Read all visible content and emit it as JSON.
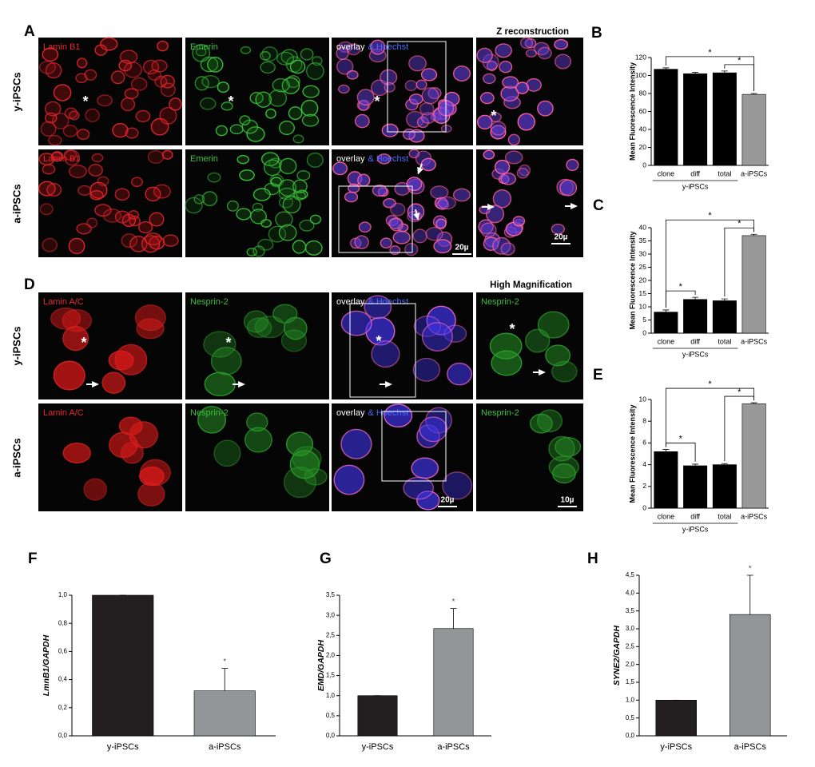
{
  "panel_A": {
    "letter": "A",
    "heading": "Z reconstruction",
    "row_labels": [
      "y-iPSCs",
      "a-iPSCs"
    ],
    "channel_labels": [
      "Lamin B1",
      "Emerin"
    ],
    "overlay_label": [
      "overlay",
      "& Hoechst"
    ],
    "scale_bars": [
      "20µ",
      "20µ"
    ],
    "cell_marker": "*"
  },
  "panel_D": {
    "letter": "D",
    "heading": "High Magnification",
    "row_labels": [
      "y-iPSCs",
      "a-iPSCs"
    ],
    "channel_labels": [
      "Lamin A/C",
      "Nesprin-2"
    ],
    "overlay_label": [
      "overlay",
      "& Hoechst"
    ],
    "scale_bars": [
      "20µ",
      "10µ"
    ],
    "cell_marker": "*"
  },
  "chart_data": [
    {
      "type": "bar",
      "panel": "B",
      "ylabel": "Mean Fluorescence Intensity",
      "categories": [
        "clone",
        "diff",
        "total",
        "a-iPSCs"
      ],
      "values": [
        107,
        102,
        103,
        79
      ],
      "errors": [
        1.5,
        1.5,
        2,
        1
      ],
      "colors": [
        "#000000",
        "#000000",
        "#000000",
        "#999999"
      ],
      "ylim": [
        0,
        120
      ],
      "yticks": [
        0,
        20,
        40,
        60,
        80,
        100,
        120
      ],
      "group": {
        "label": "y-iPSCs",
        "span": [
          0,
          2
        ]
      },
      "significance": [
        {
          "pair": [
            2,
            3
          ],
          "label": "*"
        },
        {
          "pair": [
            0,
            3
          ],
          "label": "*"
        }
      ]
    },
    {
      "type": "bar",
      "panel": "C",
      "ylabel": "Mean Fluorescence Intensity",
      "categories": [
        "clone",
        "diff",
        "total",
        "a-iPSCs"
      ],
      "values": [
        8,
        12.8,
        12.3,
        37
      ],
      "errors": [
        0.8,
        0.8,
        0.7,
        0.5
      ],
      "colors": [
        "#000000",
        "#000000",
        "#000000",
        "#999999"
      ],
      "ylim": [
        0,
        40
      ],
      "yticks": [
        0,
        5,
        10,
        15,
        20,
        25,
        30,
        35,
        40
      ],
      "group": {
        "label": "y-iPSCs",
        "span": [
          0,
          2
        ]
      },
      "significance": [
        {
          "pair": [
            0,
            1
          ],
          "label": "*"
        },
        {
          "pair": [
            2,
            3
          ],
          "label": "*"
        },
        {
          "pair": [
            0,
            3
          ],
          "label": "*"
        }
      ]
    },
    {
      "type": "bar",
      "panel": "E",
      "ylabel": "Mean Fluorescence Intensity",
      "categories": [
        "clone",
        "diff",
        "total",
        "a-iPSCs"
      ],
      "values": [
        5.2,
        3.9,
        4.0,
        9.6
      ],
      "errors": [
        0.2,
        0.15,
        0.1,
        0.1
      ],
      "colors": [
        "#000000",
        "#000000",
        "#000000",
        "#999999"
      ],
      "ylim": [
        0,
        10
      ],
      "yticks": [
        0,
        2,
        4,
        6,
        8,
        10
      ],
      "group": {
        "label": "y-iPSCs",
        "span": [
          0,
          2
        ]
      },
      "significance": [
        {
          "pair": [
            0,
            1
          ],
          "label": "*"
        },
        {
          "pair": [
            2,
            3
          ],
          "label": "*"
        },
        {
          "pair": [
            0,
            3
          ],
          "label": "*"
        }
      ]
    },
    {
      "type": "bar",
      "panel": "F",
      "ylabel": "LmnB1/GAPDH",
      "categories": [
        "y-iPSCs",
        "a-iPSCs"
      ],
      "values": [
        1.0,
        0.32
      ],
      "errors": [
        0,
        0.16
      ],
      "colors": [
        "#231f20",
        "#939598"
      ],
      "ylim": [
        0,
        1.0
      ],
      "yticks": [
        {
          "value": 0,
          "label": "0,0"
        },
        {
          "value": 0.2,
          "label": "0,2"
        },
        {
          "value": 0.4,
          "label": "0,4"
        },
        {
          "value": 0.6,
          "label": "0,6"
        },
        {
          "value": 0.8,
          "label": "0,8"
        },
        {
          "value": 1.0,
          "label": "1,0"
        }
      ],
      "annotations": [
        {
          "index": 1,
          "label": "*"
        }
      ]
    },
    {
      "type": "bar",
      "panel": "G",
      "ylabel": "EMD/GAPDH",
      "categories": [
        "y-iPSCs",
        "a-iPSCs"
      ],
      "values": [
        1.0,
        2.67
      ],
      "errors": [
        0,
        0.5
      ],
      "colors": [
        "#231f20",
        "#939598"
      ],
      "ylim": [
        0,
        3.5
      ],
      "yticks": [
        {
          "value": 0,
          "label": "0,0"
        },
        {
          "value": 0.5,
          "label": "0,5"
        },
        {
          "value": 1.0,
          "label": "1,0"
        },
        {
          "value": 1.5,
          "label": "1,5"
        },
        {
          "value": 2.0,
          "label": "2,0"
        },
        {
          "value": 2.5,
          "label": "2,5"
        },
        {
          "value": 3.0,
          "label": "3,0"
        },
        {
          "value": 3.5,
          "label": "3,5"
        }
      ],
      "annotations": [
        {
          "index": 1,
          "label": "*"
        }
      ]
    },
    {
      "type": "bar",
      "panel": "H",
      "ylabel": "SYNE2/GAPDH",
      "categories": [
        "y-iPSCs",
        "a-iPSCs"
      ],
      "values": [
        1.0,
        3.4
      ],
      "errors": [
        0,
        1.1
      ],
      "colors": [
        "#231f20",
        "#939598"
      ],
      "ylim": [
        0,
        4.5
      ],
      "yticks": [
        {
          "value": 0,
          "label": "0,0"
        },
        {
          "value": 0.5,
          "label": "0,5"
        },
        {
          "value": 1.0,
          "label": "1,0"
        },
        {
          "value": 1.5,
          "label": "1,5"
        },
        {
          "value": 2.0,
          "label": "2,0"
        },
        {
          "value": 2.5,
          "label": "2,5"
        },
        {
          "value": 3.0,
          "label": "3,0"
        },
        {
          "value": 3.5,
          "label": "3,5"
        },
        {
          "value": 4.0,
          "label": "4,0"
        },
        {
          "value": 4.5,
          "label": "4,5"
        }
      ],
      "annotations": [
        {
          "index": 1,
          "label": "*"
        }
      ]
    }
  ]
}
